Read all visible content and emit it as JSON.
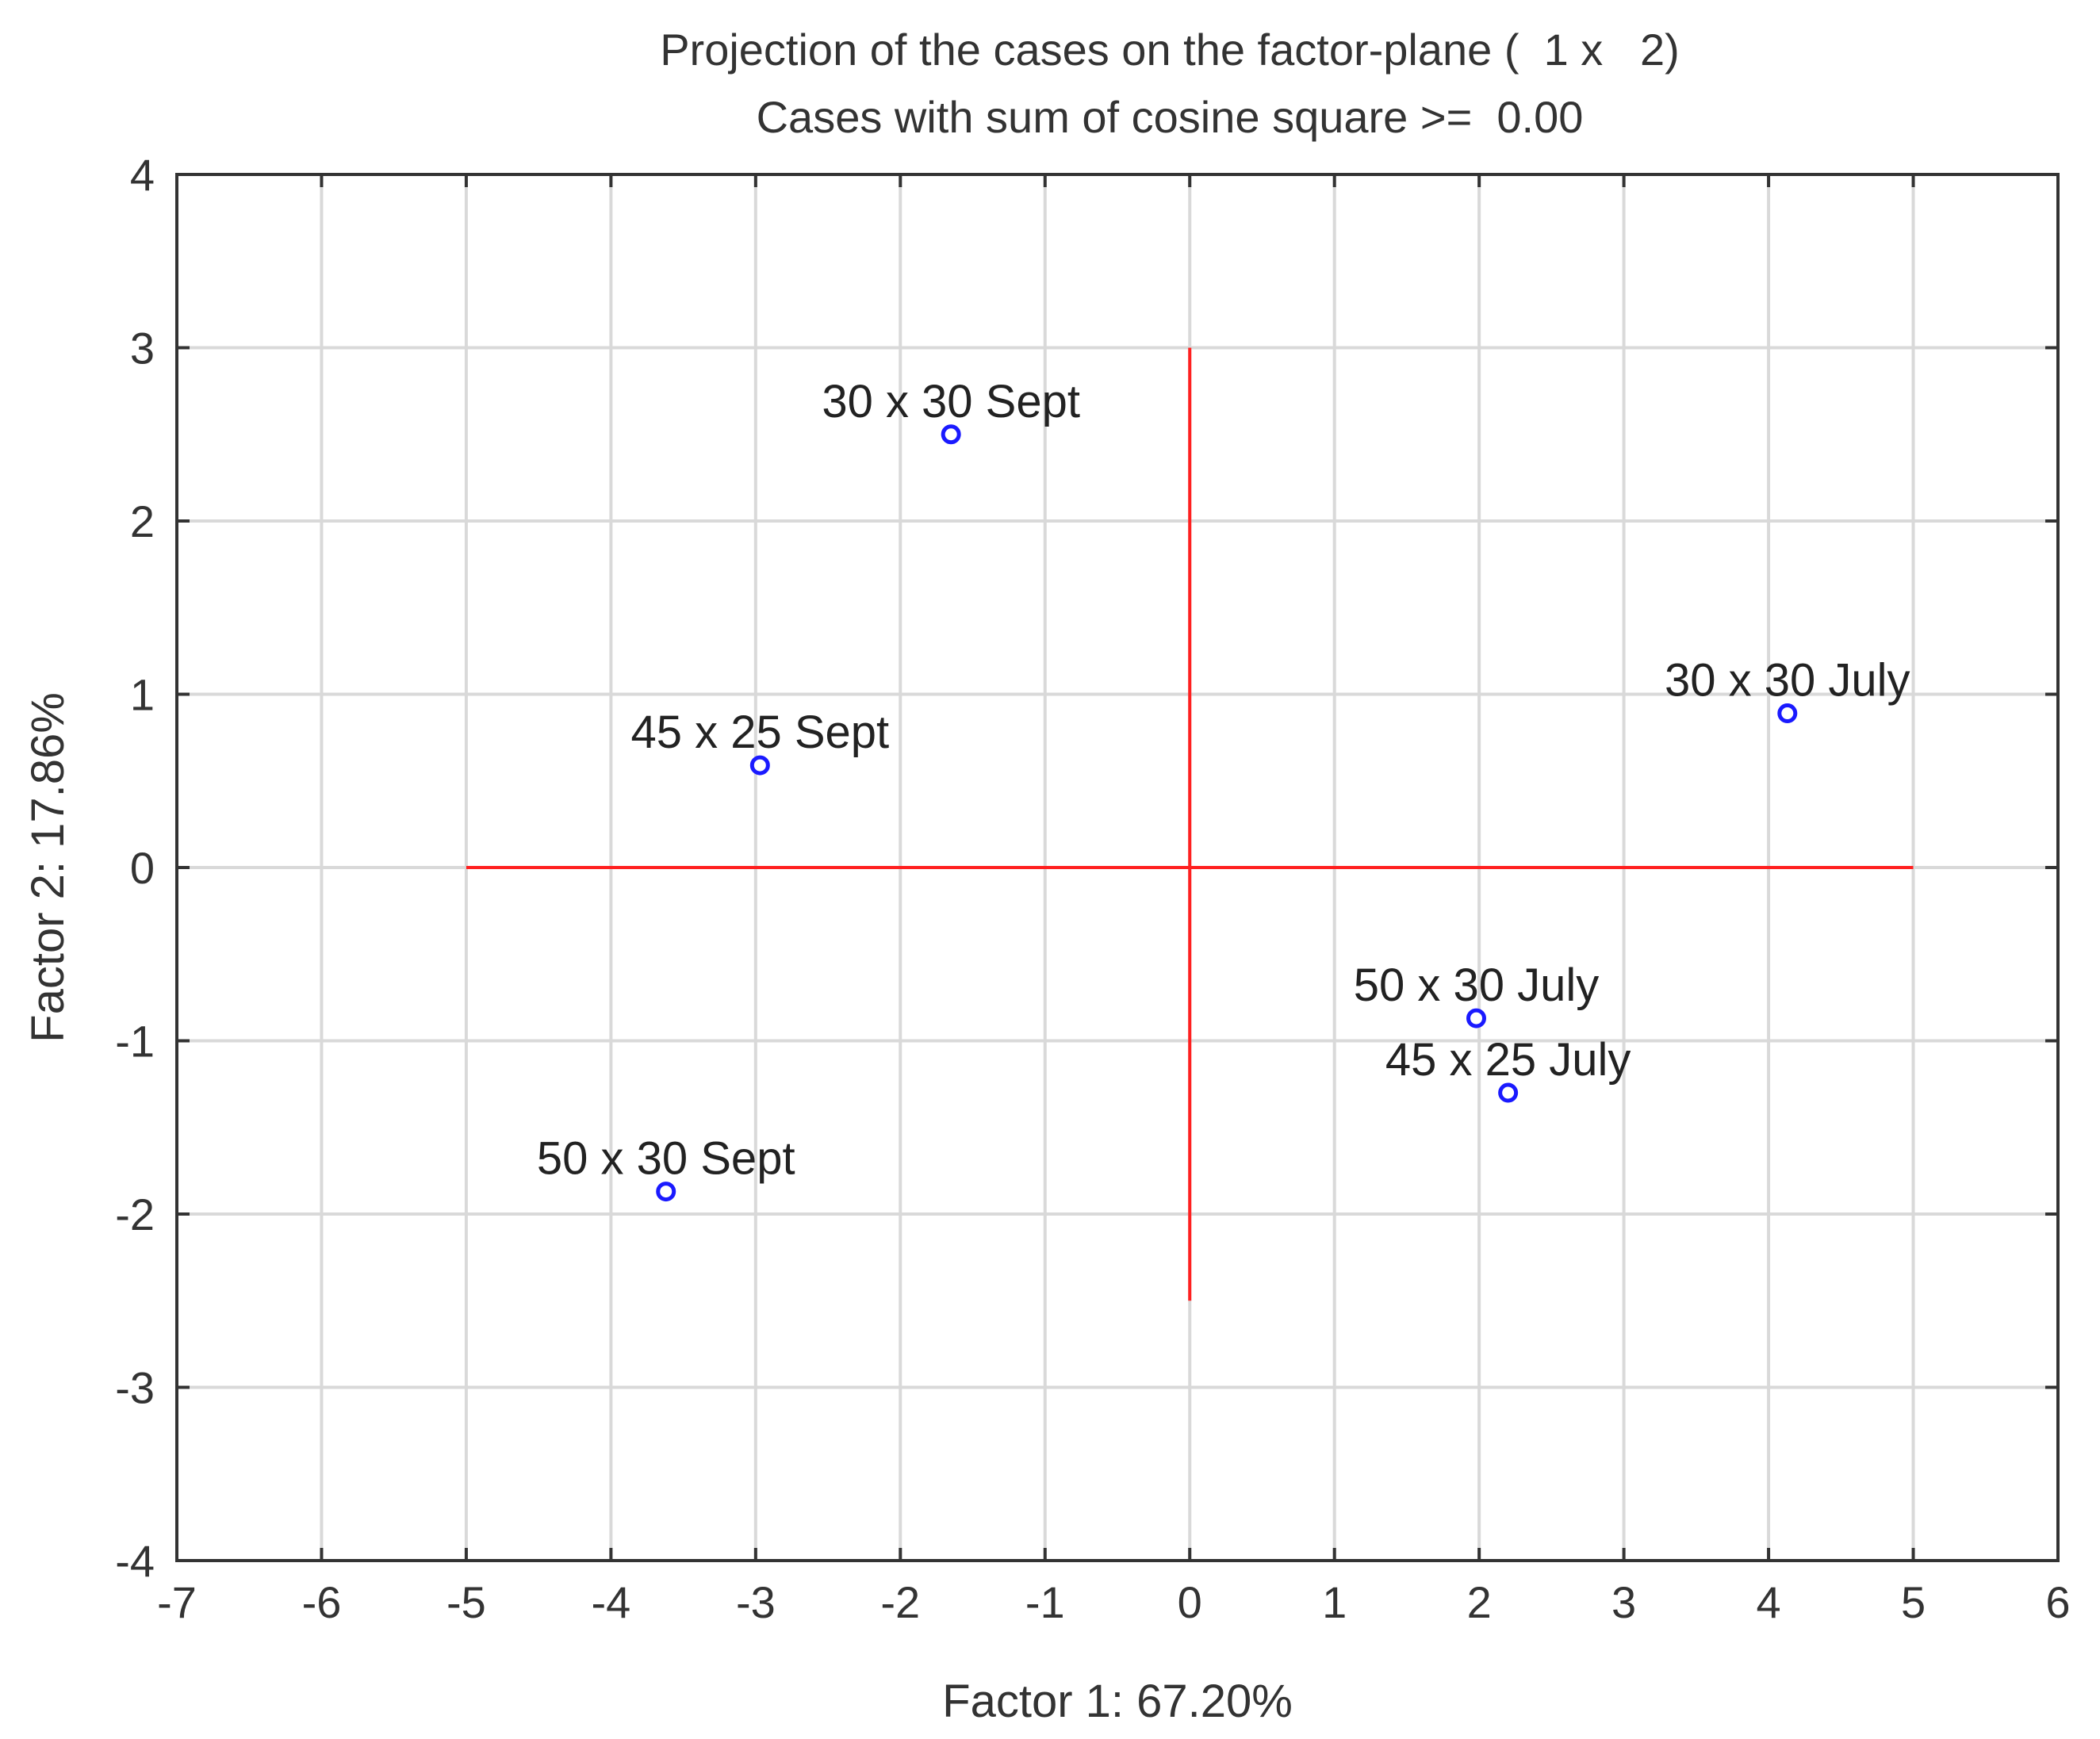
{
  "colors": {
    "background": "#ffffff",
    "grid": "#d9d9d9",
    "frame": "#333333",
    "reference_lines": "#ff2020",
    "markers": "#1a1aff",
    "text": "#333333"
  },
  "chart_data": {
    "type": "scatter",
    "title": "Projection of the cases on the factor-plane (  1 x   2)",
    "subtitle": "Cases with sum of cosine square >=  0.00",
    "xlabel": "Factor 1: 67.20%",
    "ylabel": "Factor 2: 17.86%",
    "xlim": [
      -7,
      6
    ],
    "ylim": [
      -4,
      4
    ],
    "grid": true,
    "x_ticks": [
      -7,
      -6,
      -5,
      -4,
      -3,
      -2,
      -1,
      0,
      1,
      2,
      3,
      4,
      5,
      6
    ],
    "y_ticks": [
      -4,
      -3,
      -2,
      -1,
      0,
      1,
      2,
      3,
      4
    ],
    "x_tick_labels": [
      "-7",
      "-6",
      "-5",
      "-4",
      "-3",
      "-2",
      "-1",
      "0",
      "1",
      "2",
      "3",
      "4",
      "5",
      "6"
    ],
    "y_tick_labels": [
      "-4",
      "-3",
      "-2",
      "-1",
      "0",
      "1",
      "2",
      "3",
      "4"
    ],
    "reference_lines": {
      "horizontal": {
        "y": 0,
        "x_from": -5,
        "x_to": 5
      },
      "vertical": {
        "x": 0,
        "y_from": -2.5,
        "y_to": 3
      }
    },
    "points": [
      {
        "label": "30 x 30 Sept",
        "x": -1.65,
        "y": 2.5
      },
      {
        "label": "45 x 25 Sept",
        "x": -2.97,
        "y": 0.59
      },
      {
        "label": "50 x 30 Sept",
        "x": -3.62,
        "y": -1.87
      },
      {
        "label": "30 x 30 July",
        "x": 4.13,
        "y": 0.89
      },
      {
        "label": "50 x 30 July",
        "x": 1.98,
        "y": -0.87
      },
      {
        "label": "45 x 25 July",
        "x": 2.2,
        "y": -1.3
      }
    ]
  }
}
